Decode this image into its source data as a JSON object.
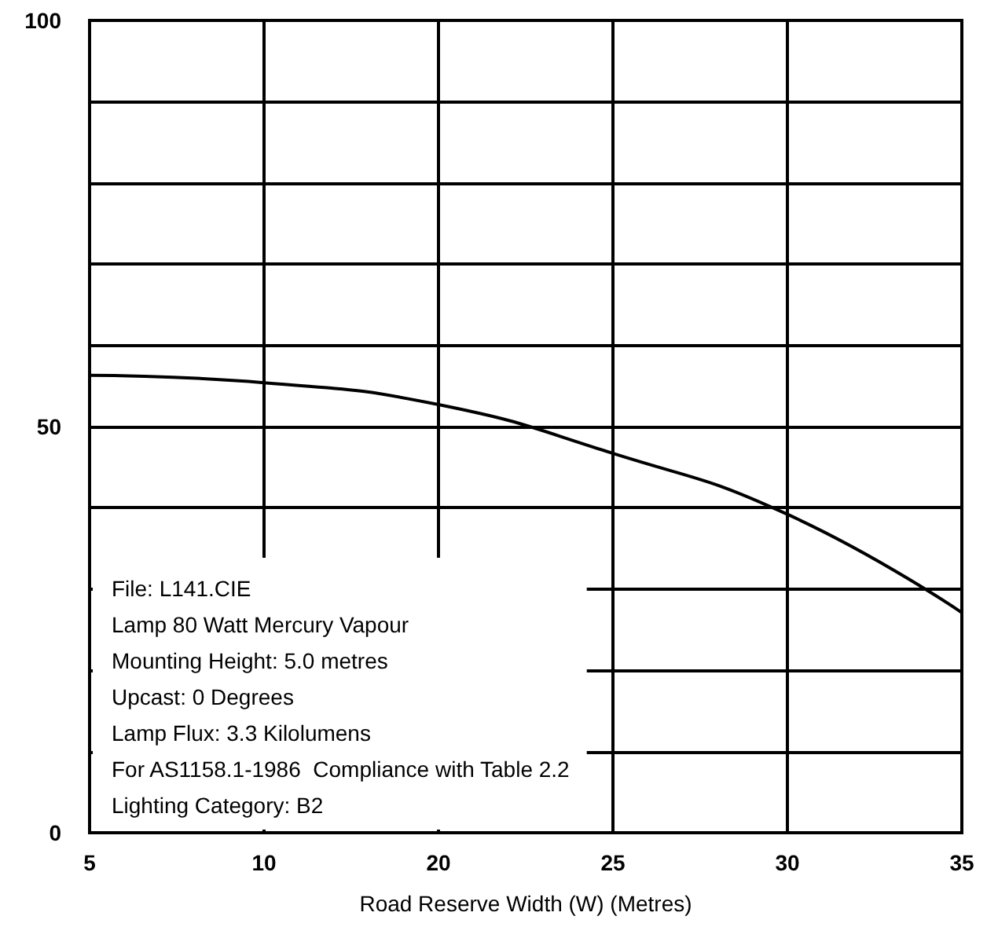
{
  "chart_data": {
    "type": "line",
    "xlabel": "Road Reserve Width (W) (Metres)",
    "categories": [
      "5",
      "10",
      "20",
      "25",
      "30",
      "35"
    ],
    "series": [
      {
        "color": "#000000",
        "values": [
          56.3,
          55.4,
          52.7,
          46.7,
          39.2,
          27.1
        ]
      }
    ],
    "ylim": [
      0,
      100
    ],
    "yticks": [
      0,
      {
        "value": 10,
        "label": null
      },
      {
        "value": 20,
        "label": null
      },
      {
        "value": 30,
        "label": null
      },
      {
        "value": 40,
        "label": null
      },
      50,
      {
        "value": 60,
        "label": null
      },
      {
        "value": 70,
        "label": null
      },
      {
        "value": 80,
        "label": null
      },
      {
        "value": 90,
        "label": null
      },
      100
    ],
    "grid": true,
    "marker": "none",
    "line_style": "solid",
    "annotations": [
      "File: L141.CIE",
      "Lamp 80 Watt Mercury Vapour",
      "Mounting Height: 5.0 metres",
      "Upcast: 0 Degrees",
      "Lamp Flux: 3.3 Kilolumens",
      "For AS1158.1-1986  Compliance with Table 2.2",
      "Lighting Category: B2"
    ]
  }
}
